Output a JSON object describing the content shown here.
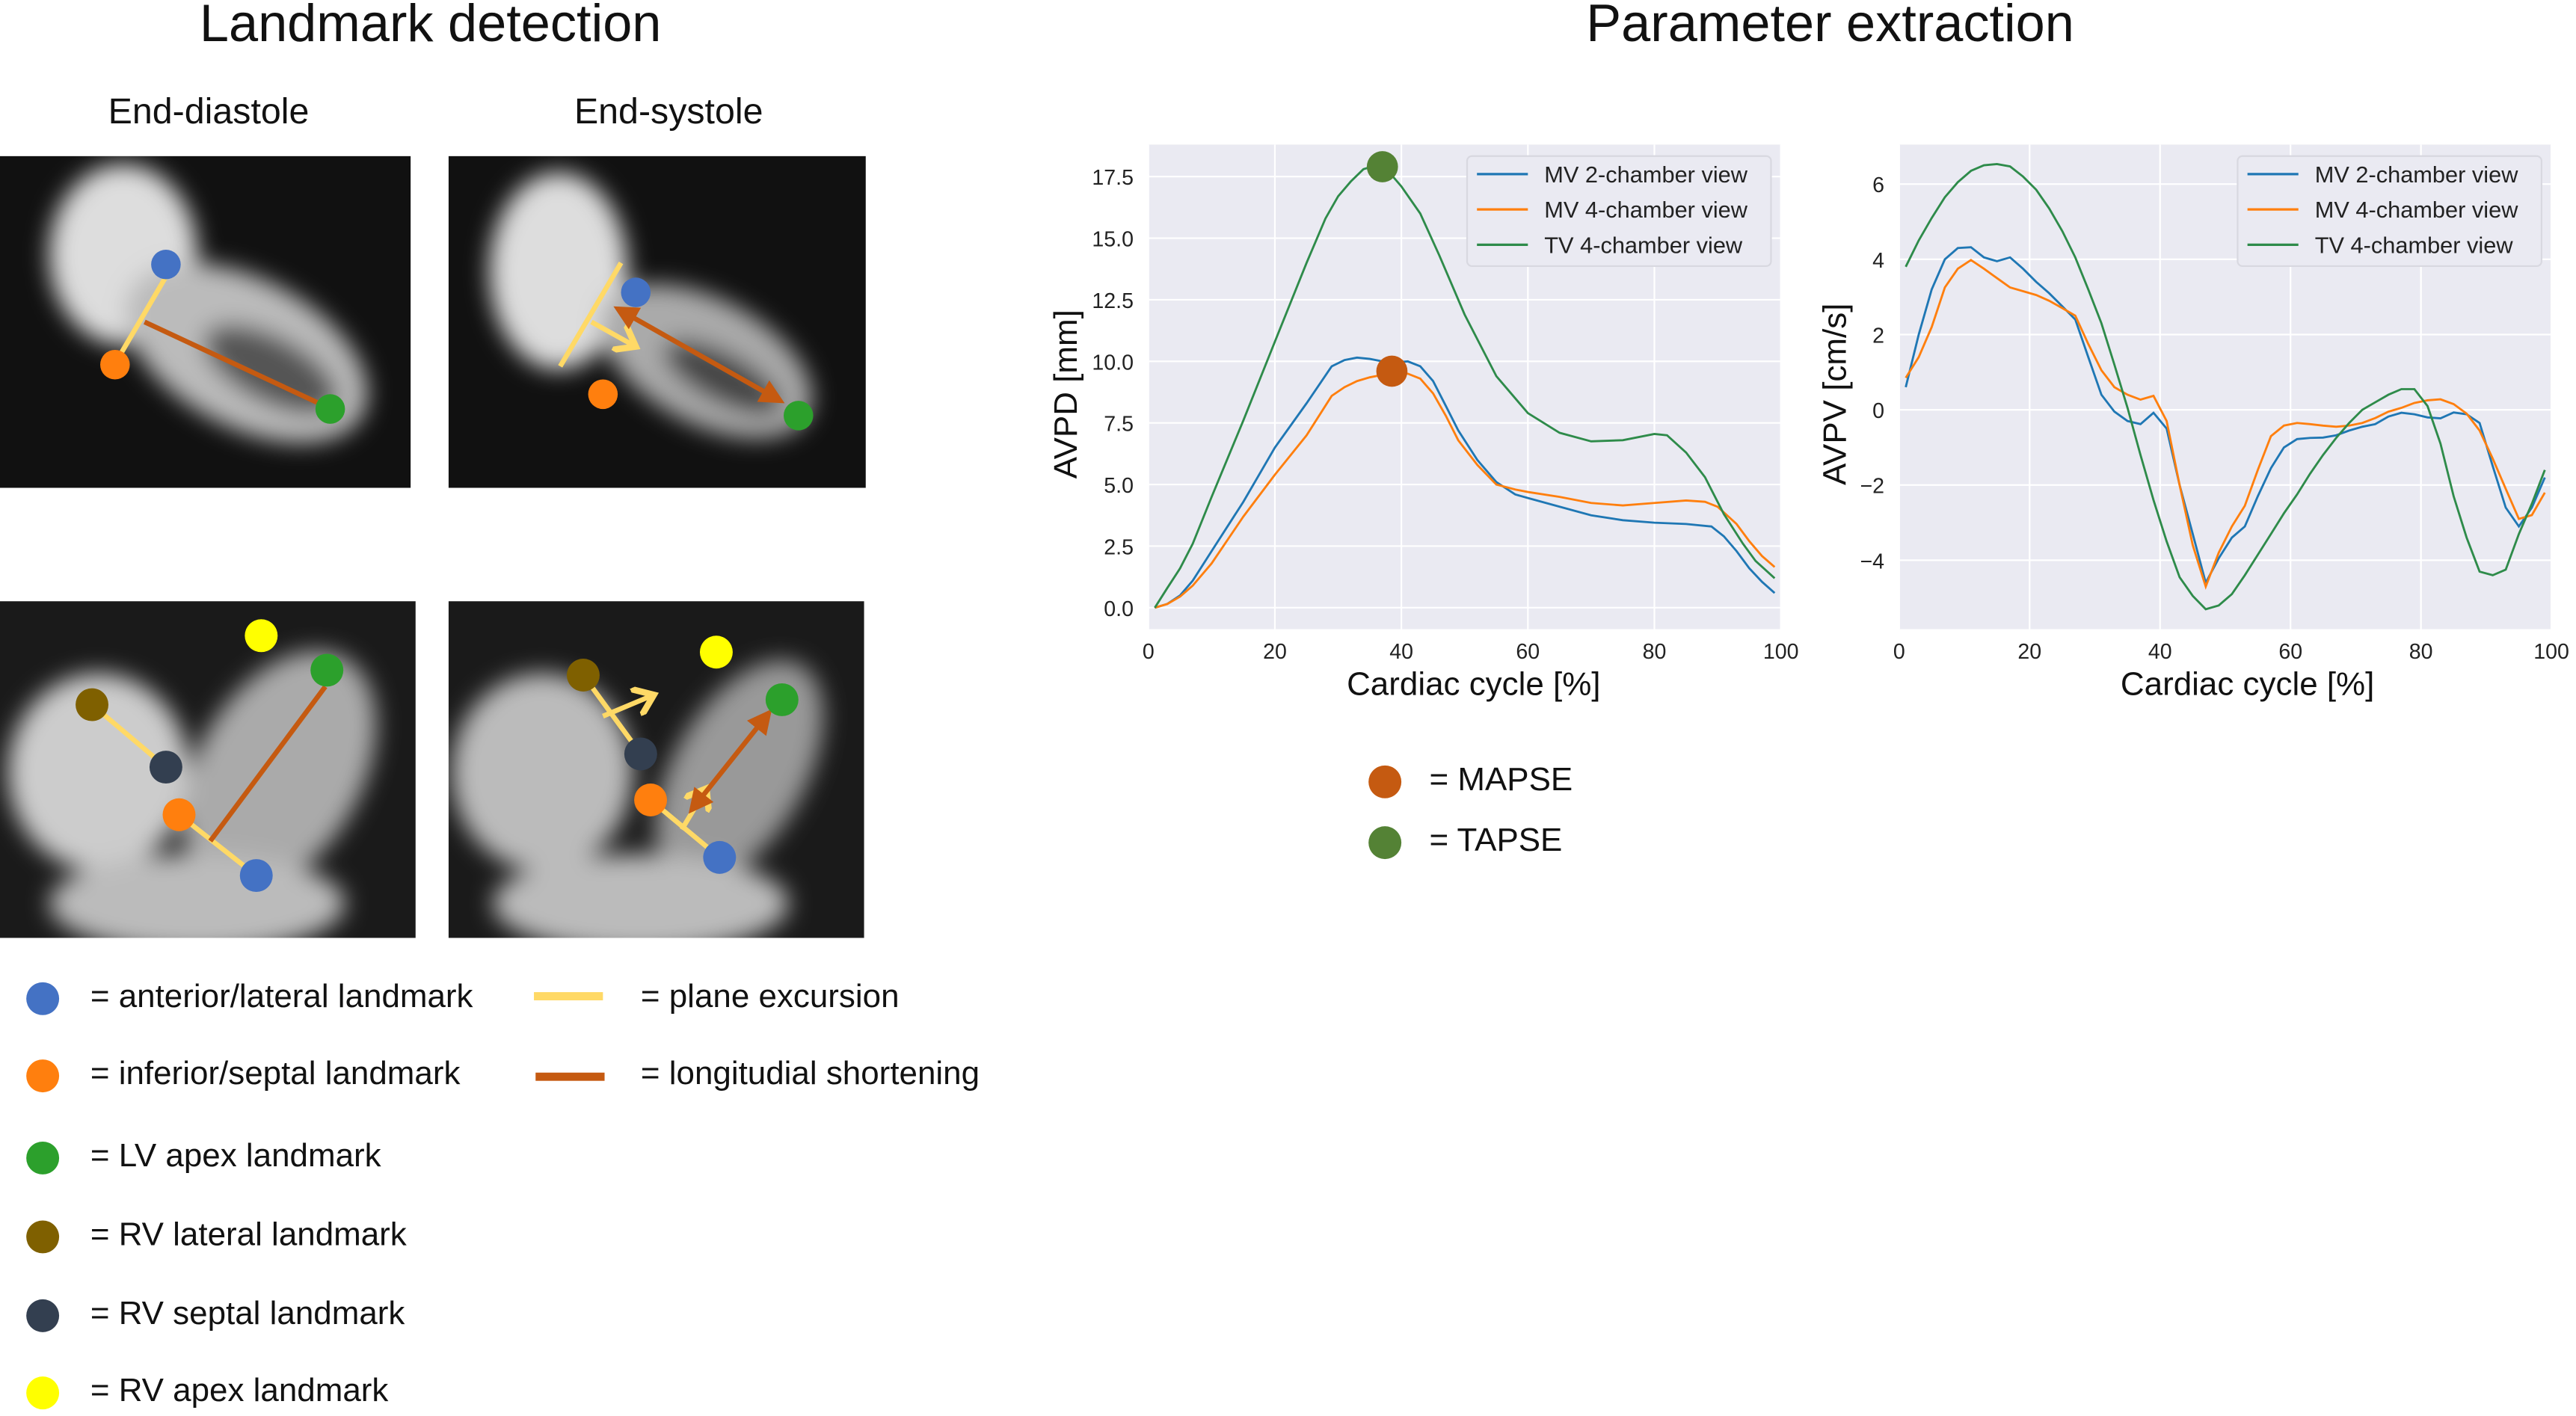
{
  "left_panel": {
    "title": "Landmark detection",
    "col_labels": [
      "End-diastole",
      "End-systole"
    ],
    "landmark_legend": [
      {
        "label": "= anterior/lateral landmark",
        "color": "#4472c4"
      },
      {
        "label": "= inferior/septal landmark",
        "color": "#ff7f0e"
      },
      {
        "label": "= LV apex landmark",
        "color": "#2ca02c"
      },
      {
        "label": "= RV lateral landmark",
        "color": "#7f6000"
      },
      {
        "label": "= RV septal landmark",
        "color": "#333f50"
      },
      {
        "label": "= RV apex landmark",
        "color": "#ffff00"
      }
    ],
    "line_legend": [
      {
        "label": "= plane excursion",
        "color": "#ffd966"
      },
      {
        "label": "= longitudial shortening",
        "color": "#c55a11"
      }
    ]
  },
  "right_panel": {
    "title": "Parameter extraction",
    "marker_legend": [
      {
        "label": "= MAPSE",
        "color": "#c55a11"
      },
      {
        "label": "= TAPSE",
        "color": "#548235"
      }
    ]
  },
  "chart_data": [
    {
      "type": "line",
      "xlabel": "Cardiac cycle [%]",
      "ylabel": "AVPD [mm]",
      "xlim": [
        0,
        100
      ],
      "ylim": [
        -0.87,
        18.8
      ],
      "xticks": [
        0,
        20,
        40,
        60,
        80,
        100
      ],
      "yticks": [
        "0.0",
        "2.5",
        "5.0",
        "7.5",
        "10.0",
        "12.5",
        "15.0",
        "17.5"
      ],
      "grid": true,
      "background": "#eaeaf2",
      "legend": "top-right",
      "series": [
        {
          "name": "MV 2-chamber view",
          "color": "#1f77b4",
          "x": [
            1,
            3,
            5,
            7,
            10,
            15,
            20,
            25,
            29,
            31,
            33,
            35,
            37,
            39,
            41,
            43,
            45,
            47,
            49,
            52,
            55,
            58,
            60,
            65,
            70,
            75,
            80,
            85,
            89,
            91,
            93,
            95,
            97,
            99
          ],
          "y": [
            0,
            0.15,
            0.5,
            1.1,
            2.3,
            4.3,
            6.5,
            8.3,
            9.8,
            10.05,
            10.15,
            10.1,
            10.0,
            9.95,
            10.0,
            9.8,
            9.2,
            8.2,
            7.2,
            6.0,
            5.1,
            4.6,
            4.45,
            4.1,
            3.75,
            3.55,
            3.45,
            3.4,
            3.3,
            2.9,
            2.3,
            1.6,
            1.05,
            0.6
          ]
        },
        {
          "name": "MV 4-chamber view",
          "color": "#ff7f0e",
          "x": [
            1,
            3,
            5,
            7,
            10,
            15,
            20,
            25,
            29,
            31,
            33,
            35,
            37,
            39,
            41,
            43,
            45,
            47,
            49,
            52,
            55,
            58,
            60,
            65,
            70,
            75,
            80,
            85,
            88,
            90,
            93,
            95,
            97,
            99
          ],
          "y": [
            0,
            0.15,
            0.45,
            0.9,
            1.8,
            3.7,
            5.4,
            7.0,
            8.6,
            8.95,
            9.2,
            9.35,
            9.45,
            9.6,
            9.5,
            9.3,
            8.7,
            7.8,
            6.8,
            5.8,
            5.0,
            4.8,
            4.7,
            4.5,
            4.25,
            4.15,
            4.25,
            4.35,
            4.3,
            4.1,
            3.4,
            2.7,
            2.1,
            1.65
          ]
        },
        {
          "name": "TV 4-chamber view",
          "color": "#2e8b4a",
          "x": [
            1,
            3,
            5,
            7,
            10,
            15,
            20,
            25,
            28,
            30,
            32,
            34,
            36,
            38,
            40,
            43,
            46,
            50,
            55,
            60,
            65,
            70,
            75,
            80,
            82,
            85,
            88,
            91,
            94,
            96,
            99
          ],
          "y": [
            0,
            0.8,
            1.6,
            2.6,
            4.5,
            7.6,
            10.8,
            14.0,
            15.8,
            16.7,
            17.3,
            17.8,
            17.95,
            17.7,
            17.1,
            16.0,
            14.3,
            11.9,
            9.4,
            7.9,
            7.1,
            6.75,
            6.8,
            7.05,
            7.0,
            6.3,
            5.3,
            3.8,
            2.6,
            1.9,
            1.2
          ]
        }
      ],
      "markers": [
        {
          "label": "TAPSE",
          "x": 37,
          "y": 17.9,
          "color": "#548235"
        },
        {
          "label": "MAPSE",
          "x": 38.5,
          "y": 9.6,
          "color": "#c55a11"
        }
      ]
    },
    {
      "type": "line",
      "xlabel": "Cardiac cycle [%]",
      "ylabel": "AVPV [cm/s]",
      "xlim": [
        0,
        100
      ],
      "ylim": [
        -5.83,
        7.05
      ],
      "xticks": [
        0,
        20,
        40,
        60,
        80,
        100
      ],
      "yticks": [
        "−4",
        "−2",
        "0",
        "2",
        "4",
        "6"
      ],
      "grid": true,
      "background": "#eaeaf2",
      "legend": "top-right",
      "series": [
        {
          "name": "MV 2-chamber view",
          "color": "#1f77b4",
          "x": [
            1,
            3,
            5,
            7,
            9,
            11,
            13,
            15,
            17,
            19,
            21,
            23,
            25,
            27,
            29,
            31,
            33,
            35,
            37,
            39,
            41,
            43,
            45,
            47,
            49,
            51,
            53,
            55,
            57,
            59,
            61,
            63,
            65,
            67,
            69,
            71,
            73,
            75,
            77,
            79,
            81,
            83,
            85,
            87,
            89,
            91,
            93,
            95,
            97,
            99
          ],
          "y": [
            0.6,
            2.0,
            3.2,
            4.0,
            4.3,
            4.32,
            4.05,
            3.95,
            4.05,
            3.75,
            3.4,
            3.1,
            2.75,
            2.4,
            1.4,
            0.4,
            -0.05,
            -0.3,
            -0.38,
            -0.08,
            -0.5,
            -2.0,
            -3.3,
            -4.6,
            -3.95,
            -3.4,
            -3.1,
            -2.3,
            -1.55,
            -1.0,
            -0.78,
            -0.75,
            -0.74,
            -0.68,
            -0.55,
            -0.45,
            -0.38,
            -0.18,
            -0.08,
            -0.12,
            -0.2,
            -0.23,
            -0.07,
            -0.12,
            -0.35,
            -1.5,
            -2.6,
            -3.1,
            -2.6,
            -1.8
          ]
        },
        {
          "name": "MV 4-chamber view",
          "color": "#ff7f0e",
          "x": [
            1,
            3,
            5,
            7,
            9,
            11,
            13,
            15,
            17,
            19,
            21,
            23,
            25,
            27,
            29,
            31,
            33,
            35,
            37,
            39,
            41,
            43,
            45,
            47,
            49,
            51,
            53,
            55,
            57,
            59,
            61,
            63,
            65,
            67,
            69,
            71,
            73,
            75,
            77,
            79,
            81,
            83,
            85,
            87,
            89,
            91,
            93,
            95,
            97,
            99
          ],
          "y": [
            0.85,
            1.4,
            2.2,
            3.25,
            3.75,
            3.98,
            3.75,
            3.5,
            3.25,
            3.15,
            3.05,
            2.9,
            2.7,
            2.5,
            1.75,
            1.05,
            0.6,
            0.4,
            0.27,
            0.37,
            -0.3,
            -2.0,
            -3.6,
            -4.7,
            -3.8,
            -3.1,
            -2.55,
            -1.6,
            -0.7,
            -0.42,
            -0.35,
            -0.38,
            -0.42,
            -0.45,
            -0.42,
            -0.35,
            -0.22,
            -0.05,
            0.05,
            0.18,
            0.25,
            0.28,
            0.15,
            -0.1,
            -0.55,
            -1.3,
            -2.1,
            -2.9,
            -2.8,
            -2.2
          ]
        },
        {
          "name": "TV 4-chamber view",
          "color": "#2e8b4a",
          "x": [
            1,
            3,
            5,
            7,
            9,
            11,
            13,
            15,
            17,
            19,
            21,
            23,
            25,
            27,
            29,
            31,
            33,
            35,
            37,
            39,
            41,
            43,
            45,
            47,
            49,
            51,
            53,
            55,
            57,
            59,
            61,
            63,
            65,
            67,
            69,
            71,
            73,
            75,
            77,
            79,
            81,
            83,
            85,
            87,
            89,
            91,
            93,
            95,
            97,
            99
          ],
          "y": [
            3.8,
            4.5,
            5.1,
            5.65,
            6.05,
            6.35,
            6.5,
            6.53,
            6.47,
            6.2,
            5.85,
            5.35,
            4.75,
            4.05,
            3.2,
            2.3,
            1.2,
            0.05,
            -1.2,
            -2.4,
            -3.5,
            -4.45,
            -4.95,
            -5.3,
            -5.2,
            -4.9,
            -4.4,
            -3.85,
            -3.3,
            -2.75,
            -2.25,
            -1.7,
            -1.2,
            -0.75,
            -0.35,
            0.0,
            0.2,
            0.4,
            0.55,
            0.55,
            0.1,
            -0.9,
            -2.3,
            -3.4,
            -4.3,
            -4.4,
            -4.25,
            -3.3,
            -2.5,
            -1.6
          ]
        }
      ]
    }
  ]
}
